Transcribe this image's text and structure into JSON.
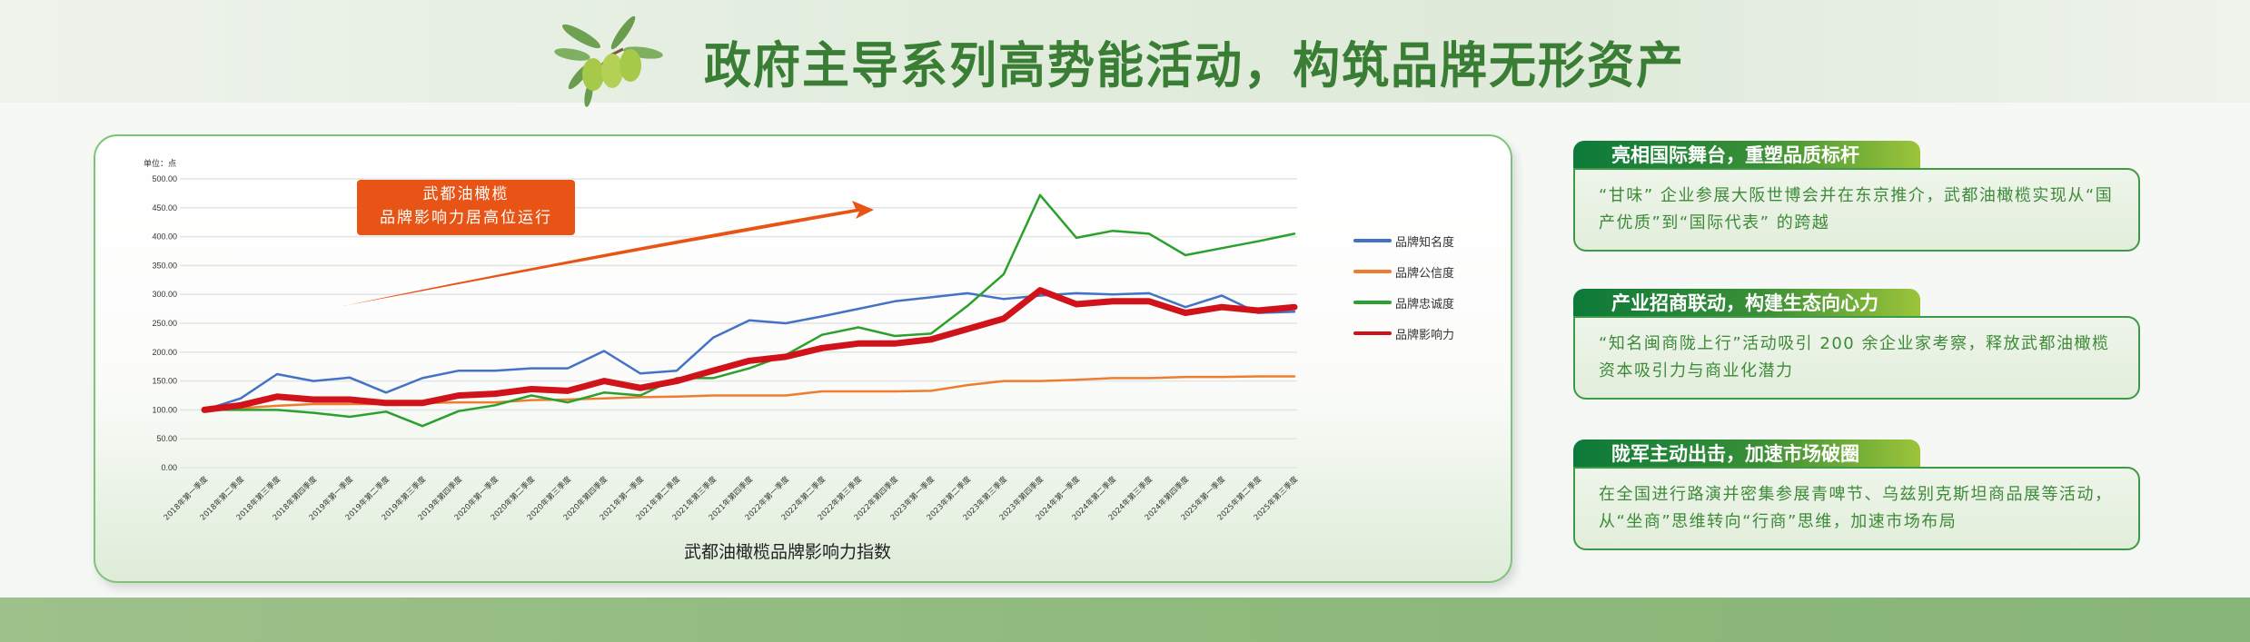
{
  "header": {
    "title": "政府主导系列高势能活动，构筑品牌无形资产",
    "logo_icon": "olive-branch-icon"
  },
  "chart_card": {
    "unit_label": "单位：点",
    "callout": {
      "line1": "武都油橄榄",
      "line2": "品牌影响力居高位运行"
    },
    "caption": "武都油橄榄品牌影响力指数"
  },
  "colors": {
    "title_green": "#3a7d34",
    "awareness": "#4472c4",
    "credibility": "#ed7d31",
    "loyalty": "#2ca02c",
    "influence": "#d0121b",
    "callout_orange": "#e85415",
    "panel_text": "#3e8a39"
  },
  "chart_data": {
    "type": "line",
    "title": "武都油橄榄品牌影响力指数",
    "xlabel": "",
    "ylabel": "单位：点",
    "ylim": [
      0,
      500
    ],
    "yticks": [
      "0.00",
      "50.00",
      "100.00",
      "150.00",
      "200.00",
      "250.00",
      "300.00",
      "350.00",
      "400.00",
      "450.00",
      "500.00"
    ],
    "grid": true,
    "legend_position": "right",
    "annotation": "武都油橄榄 品牌影响力居高位运行",
    "categories": [
      "2018年第一季度",
      "2018年第二季度",
      "2018年第三季度",
      "2018年第四季度",
      "2019年第一季度",
      "2019年第二季度",
      "2019年第三季度",
      "2019年第四季度",
      "2020年第一季度",
      "2020年第二季度",
      "2020年第三季度",
      "2020年第四季度",
      "2021年第一季度",
      "2021年第二季度",
      "2021年第三季度",
      "2021年第四季度",
      "2022年第一季度",
      "2022年第二季度",
      "2022年第三季度",
      "2022年第四季度",
      "2023年第一季度",
      "2023年第二季度",
      "2023年第三季度",
      "2023年第四季度",
      "2024年第一季度",
      "2024年第二季度",
      "2024年第三季度",
      "2024年第四季度",
      "2025年第一季度",
      "2025年第二季度",
      "2025年第三季度"
    ],
    "series": [
      {
        "name": "品牌知名度",
        "color": "#4472c4",
        "values": [
          100,
          120,
          162,
          150,
          156,
          130,
          155,
          168,
          168,
          172,
          172,
          202,
          163,
          168,
          225,
          255,
          250,
          262,
          275,
          288,
          295,
          302,
          292,
          298,
          302,
          300,
          302,
          278,
          298,
          268,
          270
        ]
      },
      {
        "name": "品牌公信度",
        "color": "#ed7d31",
        "values": [
          100,
          103,
          107,
          110,
          110,
          110,
          112,
          113,
          113,
          117,
          118,
          120,
          122,
          123,
          125,
          125,
          125,
          132,
          132,
          132,
          133,
          143,
          150,
          150,
          152,
          155,
          155,
          157,
          157,
          158,
          158
        ]
      },
      {
        "name": "品牌忠诚度",
        "color": "#2ca02c",
        "values": [
          100,
          100,
          100,
          95,
          88,
          97,
          72,
          98,
          108,
          125,
          113,
          130,
          125,
          155,
          155,
          172,
          195,
          230,
          243,
          228,
          232,
          280,
          335,
          472,
          398,
          410,
          405,
          368,
          380,
          392,
          405
        ]
      },
      {
        "name": "品牌影响力",
        "color": "#d0121b",
        "values": [
          100,
          108,
          123,
          118,
          118,
          112,
          112,
          125,
          128,
          136,
          133,
          150,
          138,
          150,
          168,
          185,
          192,
          207,
          215,
          215,
          222,
          240,
          258,
          307,
          283,
          288,
          288,
          268,
          278,
          272,
          278
        ]
      }
    ]
  },
  "panels": [
    {
      "heading": "亮相国际舞台，重塑品质标杆",
      "body": "“甘味” 企业参展大阪世博会并在东京推介，武都油橄榄实现从“国产优质”到“国际代表” 的跨越"
    },
    {
      "heading": "产业招商联动，构建生态向心力",
      "body": "“知名闽商陇上行”活动吸引 200 余企业家考察，释放武都油橄榄资本吸引力与商业化潜力"
    },
    {
      "heading": "陇军主动出击，加速市场破圈",
      "body": "在全国进行路演并密集参展青啤节、乌兹别克斯坦商品展等活动，从“坐商”思维转向“行商”思维，加速市场布局"
    }
  ]
}
